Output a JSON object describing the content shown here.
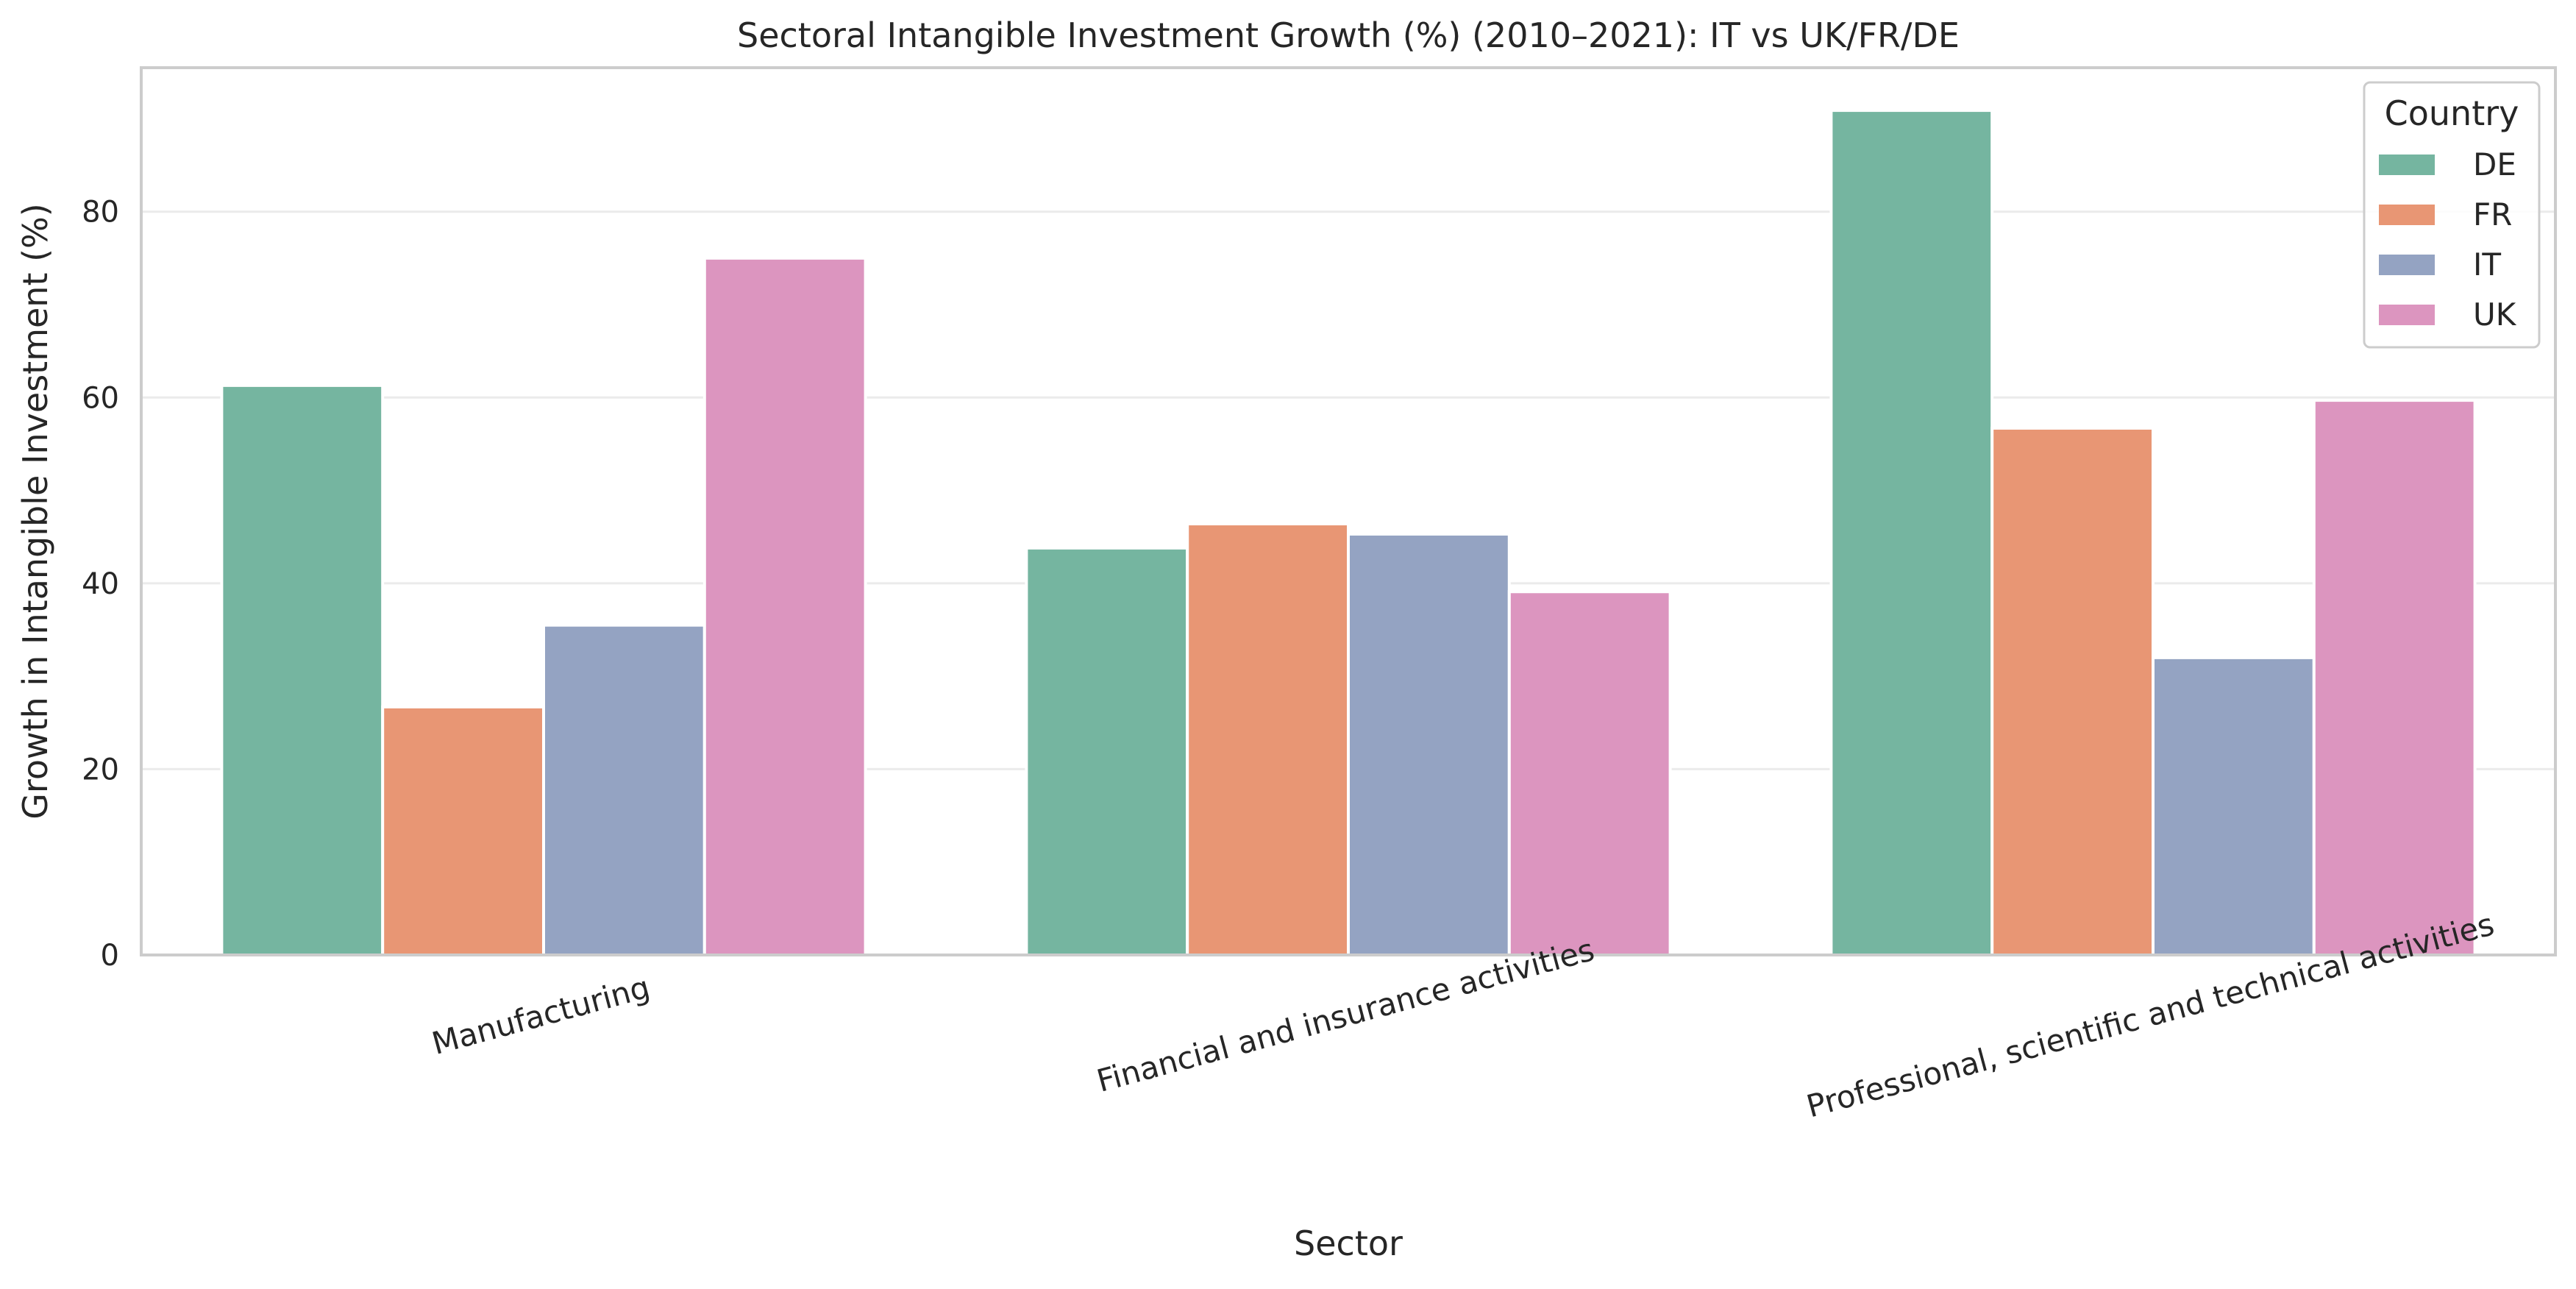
{
  "chart_data": {
    "type": "bar",
    "title": "Sectoral Intangible Investment Growth (%) (2010–2021): IT vs UK/FR/DE",
    "xlabel": "Sector",
    "ylabel": "Growth in Intangible Investment (%)",
    "categories": [
      "Manufacturing",
      "Financial and insurance activities",
      "Professional, scientific and technical activities"
    ],
    "series": [
      {
        "name": "DE",
        "color": "#75b5a0",
        "values": [
          61.3,
          43.8,
          90.9
        ]
      },
      {
        "name": "FR",
        "color": "#e89674",
        "values": [
          26.7,
          46.4,
          56.7
        ]
      },
      {
        "name": "IT",
        "color": "#94a3c2",
        "values": [
          35.5,
          45.3,
          32.0
        ]
      },
      {
        "name": "UK",
        "color": "#dc95bf",
        "values": [
          75.0,
          39.1,
          59.7
        ]
      }
    ],
    "ylim": [
      0,
      95.5
    ],
    "yticks": [
      0,
      20,
      40,
      60,
      80
    ],
    "grid": true,
    "legend": {
      "title": "Country",
      "placement": "top-right"
    }
  }
}
